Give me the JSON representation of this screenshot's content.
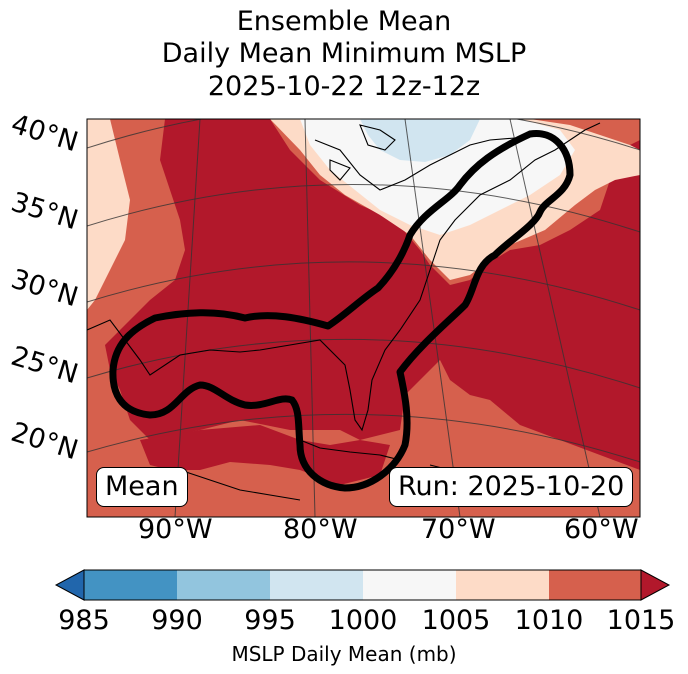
{
  "title": {
    "line1": "Ensemble Mean",
    "line2": "Daily Mean Minimum MSLP",
    "line3": "2025-10-22 12z-12z"
  },
  "map": {
    "lat_labels": [
      "40°N",
      "35°N",
      "30°N",
      "25°N",
      "20°N"
    ],
    "lon_labels": [
      "90°W",
      "80°W",
      "70°W",
      "60°W"
    ],
    "mean_box": "Mean",
    "run_box": "Run: 2025-10-20",
    "contour_color": "#000000"
  },
  "colorbar": {
    "title": "MSLP Daily Mean (mb)",
    "ticks": [
      "985",
      "990",
      "995",
      "1000",
      "1005",
      "1010",
      "1015"
    ],
    "colors": {
      "below_985": "#2166ac",
      "985_990": "#4393c3",
      "990_995": "#92c5de",
      "995_1000": "#d1e5f0",
      "1000_1005": "#f7f7f7",
      "1005_1010": "#fddbc7",
      "1010_1015": "#d6604d",
      "above_1015": "#b2182b"
    }
  }
}
